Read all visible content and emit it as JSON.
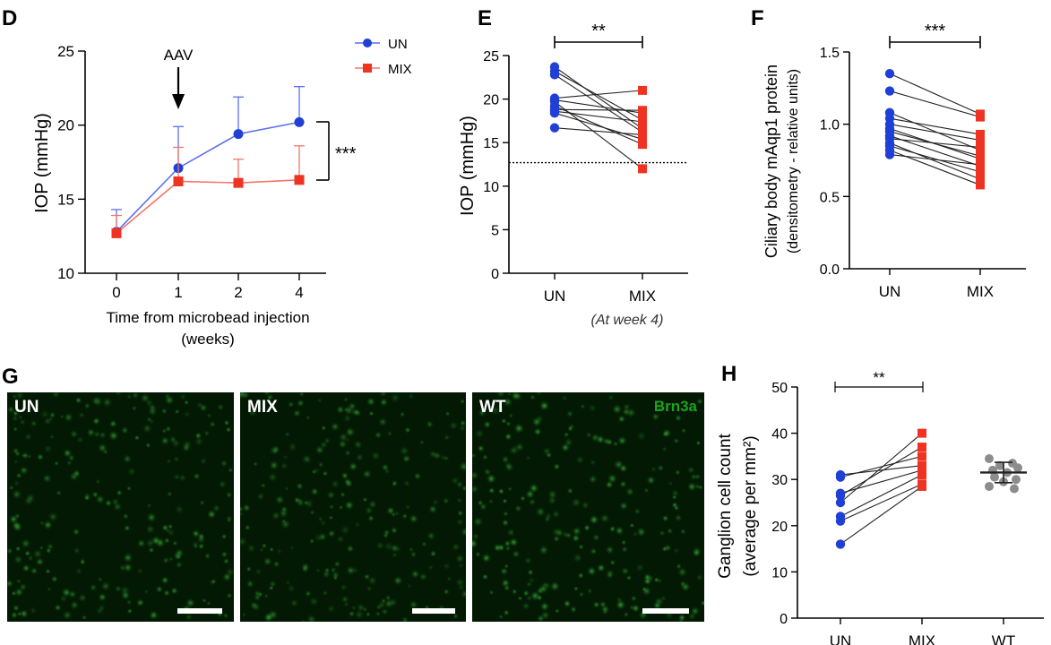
{
  "panel_letters": {
    "D": "D",
    "E": "E",
    "F": "F",
    "G": "G",
    "H": "H"
  },
  "colors": {
    "un": "#1f3fd6",
    "un_line": "#5a6ff0",
    "mix": "#ee3322",
    "mix_line": "#f2766a",
    "wt": "#8c8c8c",
    "axis": "#000000",
    "micro_bg": "#031903",
    "cell": "#2fa62f"
  },
  "panel_G": {
    "images": [
      {
        "label": "UN",
        "stain": ""
      },
      {
        "label": "MIX",
        "stain": ""
      },
      {
        "label": "WT",
        "stain": "Brn3a"
      }
    ]
  },
  "chart_data": [
    {
      "panel": "D",
      "type": "line",
      "categories": [
        "0",
        "1",
        "2",
        "4"
      ],
      "ylabel": "IOP (mmHg)",
      "xlabel": "Time from microbead injection\n(weeks)",
      "ylim": [
        10,
        25
      ],
      "yticks": [
        "10",
        "15",
        "20",
        "25"
      ],
      "series": [
        {
          "name": "UN",
          "values": [
            12.8,
            17.1,
            19.4,
            20.2
          ],
          "err": [
            1.5,
            2.8,
            2.5,
            2.4
          ]
        },
        {
          "name": "MIX",
          "values": [
            12.7,
            16.2,
            16.1,
            16.3
          ],
          "err": [
            1.2,
            2.3,
            1.6,
            2.3
          ]
        }
      ],
      "annotations": [
        {
          "text": "AAV",
          "at": "1"
        },
        {
          "text": "***",
          "type": "bracket"
        }
      ],
      "legend": "top-right",
      "grid": false
    },
    {
      "panel": "E",
      "type": "scatter",
      "categories": [
        "UN",
        "MIX"
      ],
      "ylabel": "IOP (mmHg)",
      "xlabel": "(At week 4)",
      "ylim": [
        0,
        25
      ],
      "yticks": [
        "0",
        "5",
        "10",
        "15",
        "20",
        "25"
      ],
      "reference_line": 12.7,
      "significance": "**",
      "pairs": [
        [
          23.7,
          16.6
        ],
        [
          23.2,
          17.6
        ],
        [
          22.8,
          16.2
        ],
        [
          20.1,
          21.0
        ],
        [
          19.9,
          18.4
        ],
        [
          19.7,
          12.0
        ],
        [
          19.2,
          14.8
        ],
        [
          18.8,
          18.7
        ],
        [
          18.6,
          17.4
        ],
        [
          18.4,
          15.4
        ],
        [
          16.7,
          15.9
        ]
      ]
    },
    {
      "panel": "F",
      "type": "scatter",
      "categories": [
        "UN",
        "MIX"
      ],
      "ylabel": "Ciliary body mAqp1 protein\n(densitometry - relative units)",
      "ylim": [
        0.0,
        1.5
      ],
      "yticks": [
        "0.0",
        "0.5",
        "1.0",
        "1.5"
      ],
      "significance": "***",
      "pairs": [
        [
          1.35,
          1.07
        ],
        [
          1.23,
          1.05
        ],
        [
          1.08,
          0.82
        ],
        [
          1.04,
          0.93
        ],
        [
          1.0,
          0.89
        ],
        [
          0.97,
          0.76
        ],
        [
          0.95,
          0.78
        ],
        [
          0.92,
          0.71
        ],
        [
          0.9,
          0.84
        ],
        [
          0.87,
          0.62
        ],
        [
          0.85,
          0.67
        ],
        [
          0.82,
          0.58
        ],
        [
          0.79,
          0.72
        ]
      ]
    },
    {
      "panel": "H",
      "type": "scatter",
      "categories": [
        "UN",
        "MIX",
        "WT"
      ],
      "ylabel": "Ganglion cell count\n(average per mm²)",
      "ylim": [
        0,
        50
      ],
      "yticks": [
        "0",
        "10",
        "20",
        "30",
        "40",
        "50"
      ],
      "significance": "**",
      "pairs": [
        [
          31,
          33
        ],
        [
          30.5,
          35
        ],
        [
          27,
          32
        ],
        [
          26.5,
          37
        ],
        [
          25,
          40
        ],
        [
          22,
          31
        ],
        [
          21,
          29
        ],
        [
          16,
          28.5
        ]
      ],
      "wt_values": [
        34.5,
        33.5,
        33,
        32.5,
        32,
        31.5,
        30.5,
        30,
        29.5,
        28.5,
        28
      ],
      "wt_mean": 31.5,
      "wt_sd": 2.2
    }
  ]
}
